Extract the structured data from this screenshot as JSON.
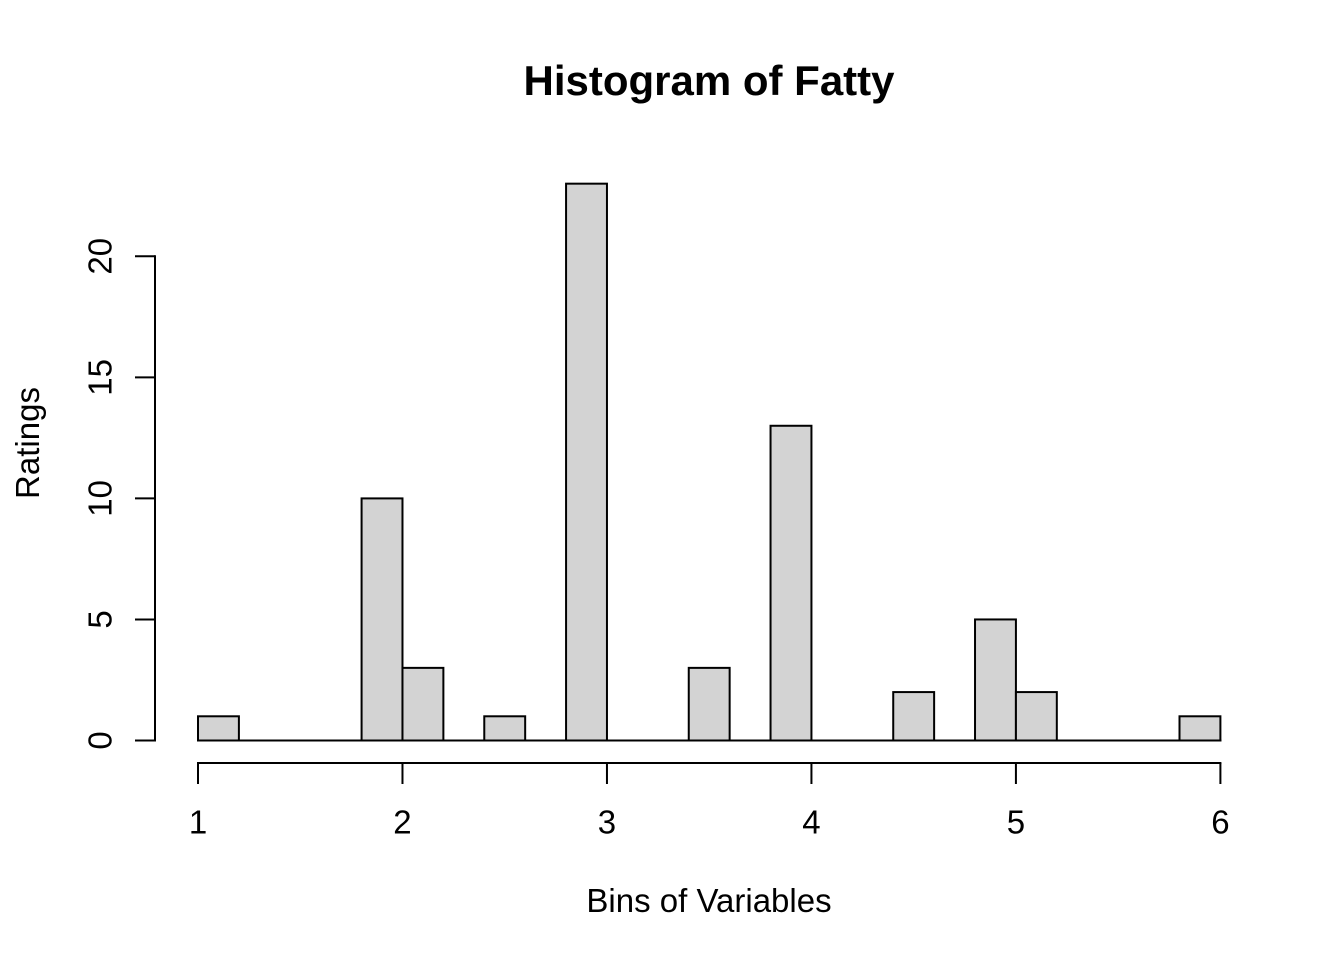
{
  "chart_data": {
    "type": "bar",
    "subtype": "histogram",
    "title": "Histogram of Fatty",
    "xlabel": "Bins of Variables",
    "ylabel": "Ratings",
    "xlim": [
      1,
      6
    ],
    "ylim": [
      0,
      20
    ],
    "x_ticks": [
      1,
      2,
      3,
      4,
      5,
      6
    ],
    "y_ticks": [
      0,
      5,
      10,
      15,
      20
    ],
    "bin_width": 0.2,
    "bars": [
      {
        "from": 1.0,
        "to": 1.2,
        "count": 1
      },
      {
        "from": 1.8,
        "to": 2.0,
        "count": 10
      },
      {
        "from": 2.0,
        "to": 2.2,
        "count": 3
      },
      {
        "from": 2.4,
        "to": 2.6,
        "count": 1
      },
      {
        "from": 2.8,
        "to": 3.0,
        "count": 23
      },
      {
        "from": 3.4,
        "to": 3.6,
        "count": 3
      },
      {
        "from": 3.8,
        "to": 4.0,
        "count": 13
      },
      {
        "from": 4.4,
        "to": 4.6,
        "count": 2
      },
      {
        "from": 4.8,
        "to": 5.0,
        "count": 5
      },
      {
        "from": 5.0,
        "to": 5.2,
        "count": 2
      },
      {
        "from": 5.8,
        "to": 6.0,
        "count": 1
      }
    ],
    "grid": false,
    "legend": false,
    "colors": {
      "bar_fill": "#d3d3d3",
      "bar_stroke": "#000000",
      "axis": "#000000",
      "text": "#000000",
      "background": "#ffffff"
    }
  }
}
